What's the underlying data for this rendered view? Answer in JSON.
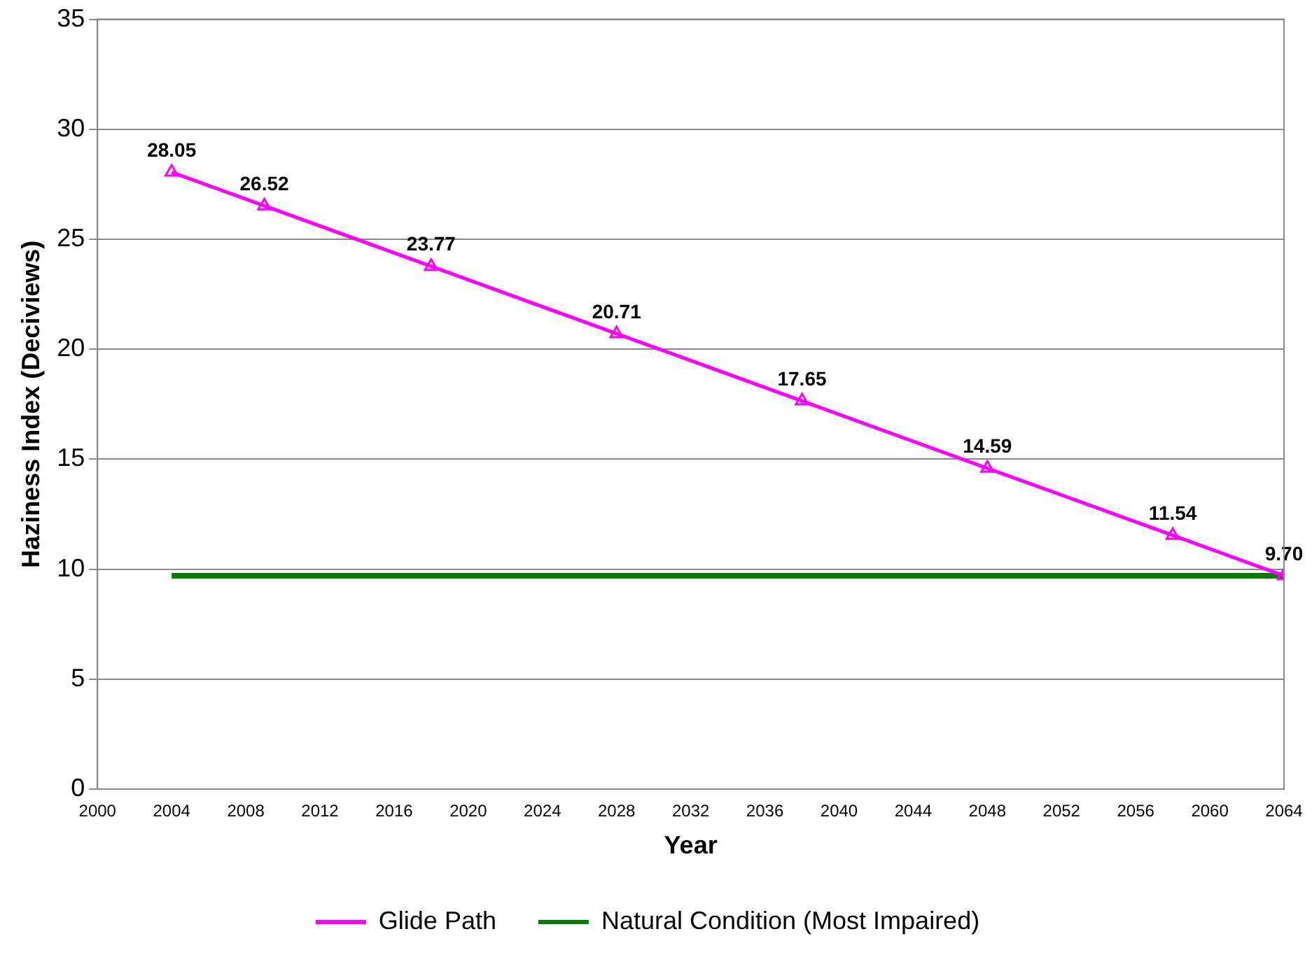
{
  "chart_data": {
    "type": "line",
    "xlabel": "Year",
    "ylabel": "Haziness Index (Deciviews)",
    "xlim": [
      2000,
      2064
    ],
    "xticks": [
      2000,
      2004,
      2008,
      2012,
      2016,
      2020,
      2024,
      2028,
      2032,
      2036,
      2040,
      2044,
      2048,
      2052,
      2056,
      2060,
      2064
    ],
    "ylim": [
      0,
      35
    ],
    "yticks": [
      0,
      5,
      10,
      15,
      20,
      25,
      30,
      35
    ],
    "grid": "y",
    "legend": "bottom",
    "series": [
      {
        "name": "Glide Path",
        "color": "#ff00ff",
        "marker": "triangle",
        "x": [
          2004,
          2009,
          2018,
          2028,
          2038,
          2048,
          2058,
          2064
        ],
        "values": [
          28.05,
          26.52,
          23.77,
          20.71,
          17.65,
          14.59,
          11.54,
          9.7
        ],
        "value_labels": [
          "28.05",
          "26.52",
          "23.77",
          "20.71",
          "17.65",
          "14.59",
          "11.54",
          "9.70"
        ]
      },
      {
        "name": "Natural Condition (Most Impaired)",
        "color": "#008000",
        "marker": "none",
        "x": [
          2004,
          2064
        ],
        "values": [
          9.7,
          9.7
        ]
      }
    ]
  }
}
